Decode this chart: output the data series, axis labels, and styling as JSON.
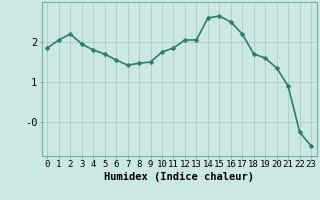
{
  "x": [
    0,
    1,
    2,
    3,
    4,
    5,
    6,
    7,
    8,
    9,
    10,
    11,
    12,
    13,
    14,
    15,
    16,
    17,
    18,
    19,
    20,
    21,
    22,
    23
  ],
  "y": [
    1.85,
    2.05,
    2.2,
    1.95,
    1.8,
    1.7,
    1.55,
    1.42,
    1.47,
    1.5,
    1.75,
    1.85,
    2.05,
    2.05,
    2.6,
    2.65,
    2.5,
    2.2,
    1.7,
    1.6,
    1.35,
    0.9,
    -0.25,
    -0.6
  ],
  "line_color": "#2e7d6e",
  "marker": "D",
  "marker_size": 2.5,
  "bg_color": "#cce8e4",
  "grid_color": "#aaccc8",
  "xlabel": "Humidex (Indice chaleur)",
  "ytick_labels": [
    "-0",
    "1",
    "2"
  ],
  "ytick_vals": [
    0,
    1,
    2
  ],
  "ylim": [
    -0.85,
    3.0
  ],
  "xlim": [
    -0.5,
    23.5
  ],
  "xlabel_fontsize": 7.5,
  "tick_fontsize": 7,
  "line_width": 1.2
}
